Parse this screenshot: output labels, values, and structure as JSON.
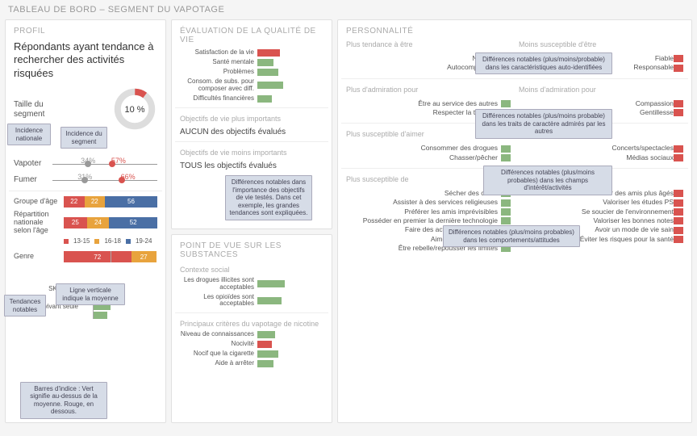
{
  "colors": {
    "green": "#8bb77f",
    "red": "#d9534f",
    "orange": "#e8a33d",
    "blue": "#4a6fa5",
    "grey": "#999999",
    "callout_bg": "#d6dce7",
    "callout_border": "#aab"
  },
  "title": "TABLEAU DE BORD – SEGMENT DU VAPOTAGE",
  "profil": {
    "header": "PROFIL",
    "description": "Répondants ayant tendance à rechercher des activités risquées",
    "donut_pct": "10 %",
    "donut_value": 10,
    "seg_size_label": "Taille du segment",
    "incidence_nat_label": "Incidence nationale",
    "incidence_seg_label": "Incidence du segment",
    "dumbbells": [
      {
        "label": "Vapoter",
        "nat": 34,
        "seg": 57,
        "nat_txt": "34%",
        "seg_txt": "57%"
      },
      {
        "label": "Fumer",
        "nat": 31,
        "seg": 66,
        "nat_txt": "31%",
        "seg_txt": "66%"
      }
    ],
    "age_group_label": "Groupe d'âge",
    "nat_age_label": "Répartition nationale selon l'âge",
    "age_groups": [
      {
        "vals": [
          22,
          22,
          56
        ],
        "labels": [
          "22",
          "22",
          "56"
        ]
      },
      {
        "vals": [
          25,
          24,
          52
        ],
        "labels": [
          "25",
          "24",
          "52"
        ]
      }
    ],
    "age_legend": [
      "13-15",
      "16-18",
      "19-24"
    ],
    "gender_label": "Genre",
    "gender": {
      "vals": [
        72,
        27
      ],
      "labels": [
        "72",
        "27"
      ]
    },
    "tendances_label": "Tendances notables",
    "vline_label": "Ligne verticale indique la moyenne",
    "index_rows": [
      {
        "label": "SK/AB/BC",
        "val": 35,
        "color": "#8bb77f"
      },
      {
        "label": "Anglais",
        "val": 28,
        "color": "#8bb77f"
      },
      {
        "label": "Personne vivant seule",
        "val": 22,
        "color": "#8bb77f"
      },
      {
        "label": "",
        "val": 18,
        "color": "#8bb77f"
      }
    ],
    "index_callout": "Barres d'indice : Vert signifie au-dessus de la moyenne. Rouge, en dessous."
  },
  "qol": {
    "header": "ÉVALUATION DE LA QUALITÉ DE VIE",
    "rows": [
      {
        "label": "Satisfaction de la vie",
        "val": 28,
        "color": "#d9534f"
      },
      {
        "label": "Santé mentale",
        "val": 20,
        "color": "#8bb77f"
      },
      {
        "label": "Problèmes",
        "val": 26,
        "color": "#8bb77f"
      },
      {
        "label": "Consom. de subs. pour composer avec diff.",
        "val": 32,
        "color": "#8bb77f"
      },
      {
        "label": "Difficultés financières",
        "val": 18,
        "color": "#8bb77f"
      }
    ],
    "obj_header_hi": "Objectifs de vie plus importants",
    "obj_hi_text": "AUCUN des objectifs évalués",
    "obj_header_lo": "Objectifs de vie moins importants",
    "obj_lo_text": "TOUS les objectifs évalués",
    "obj_callout": "Différences notables dans l'importance des objectifs de vie testés. Dans cet exemple, les grandes tendances sont expliquées."
  },
  "subst": {
    "header": "POINT DE VUE SUR LES SUBSTANCES",
    "social_header": "Contexte social",
    "social_rows": [
      {
        "label": "Les drogues illicites sont acceptables",
        "val": 34,
        "color": "#8bb77f"
      },
      {
        "label": "Les opioïdes sont acceptables",
        "val": 30,
        "color": "#8bb77f"
      }
    ],
    "crit_header": "Principaux critères du vapotage de nicotine",
    "crit_rows": [
      {
        "label": "Niveau de connaissances",
        "val": 22,
        "color": "#8bb77f"
      },
      {
        "label": "Nocivité",
        "val": 18,
        "color": "#d9534f"
      },
      {
        "label": "Nocif que la cigarette",
        "val": 26,
        "color": "#8bb77f"
      },
      {
        "label": "Aide à arrêter",
        "val": 20,
        "color": "#8bb77f"
      }
    ]
  },
  "pers": {
    "header": "PERSONNALITÉ",
    "callouts": {
      "c1": "Différences notables (plus/moins/probable) dans les caractéristiques auto-identifiées",
      "c2": "Différences notables (plus/moins probable) dans les traits de caractère admirés par les autres",
      "c3": "Différences notables (plus/moins probables) dans les champs d'intérêt/activités",
      "c4": "Différences notables (plus/moins probables) dans les comportements/attitudes"
    },
    "sections": [
      {
        "left_h": "Plus tendance à être",
        "right_h": "Moins susceptible d'être",
        "left": [
          {
            "label": "Névrosé",
            "color": "#8bb77f"
          },
          {
            "label": "Autocomplaisant",
            "color": "#8bb77f"
          }
        ],
        "right": [
          {
            "label": "Fiable",
            "color": "#d9534f"
          },
          {
            "label": "Responsable",
            "color": "#d9534f"
          }
        ]
      },
      {
        "left_h": "Plus d'admiration pour",
        "right_h": "Moins d'admiration pour",
        "left": [
          {
            "label": "Être au service des autres",
            "color": "#8bb77f"
          },
          {
            "label": "Respecter la tradition",
            "color": "#8bb77f"
          }
        ],
        "right": [
          {
            "label": "Compassion",
            "color": "#d9534f"
          },
          {
            "label": "Gentillesse",
            "color": "#d9534f"
          }
        ]
      },
      {
        "left_h": "Plus susceptible d'aimer",
        "right_h": "Moins susceptible d'aimer",
        "left": [
          {
            "label": "Consommer des drogues",
            "color": "#8bb77f"
          },
          {
            "label": "Chasser/pêcher",
            "color": "#8bb77f"
          }
        ],
        "right": [
          {
            "label": "Concerts/spectacles",
            "color": "#d9534f"
          },
          {
            "label": "Médias sociaux",
            "color": "#d9534f"
          }
        ]
      },
      {
        "left_h": "Plus susceptible de",
        "right_h": "Moins susceptible de",
        "left": [
          {
            "label": "Sécher des cours",
            "color": "#8bb77f"
          },
          {
            "label": "Assister à des services religieuses",
            "color": "#8bb77f"
          },
          {
            "label": "Préférer les amis imprévisibles",
            "color": "#8bb77f"
          },
          {
            "label": "Posséder en premier la dernière technologie",
            "color": "#8bb77f"
          },
          {
            "label": "Faire des activités qui effraient",
            "color": "#8bb77f"
          },
          {
            "label": "Aimer les fêtes (party)",
            "color": "#8bb77f"
          },
          {
            "label": "Être rebelle/repousser les limites",
            "color": "#8bb77f"
          }
        ],
        "right": [
          {
            "label": "Avoir des amis plus âgés",
            "color": "#d9534f"
          },
          {
            "label": "Valoriser les études PS",
            "color": "#d9534f"
          },
          {
            "label": "Se soucier de l'environnement",
            "color": "#d9534f"
          },
          {
            "label": "Valoriser les bonnes notes",
            "color": "#d9534f"
          },
          {
            "label": "Avoir un mode de vie sain",
            "color": "#d9534f"
          },
          {
            "label": "Éviter les risques pour la santé",
            "color": "#d9534f"
          }
        ]
      }
    ]
  }
}
